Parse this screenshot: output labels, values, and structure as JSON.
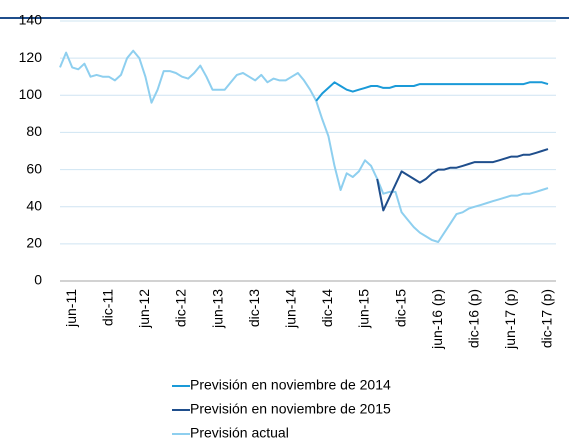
{
  "chart_data": {
    "type": "line",
    "categories": [
      null,
      null,
      "jun-11",
      null,
      null,
      null,
      null,
      null,
      "dic-11",
      null,
      null,
      null,
      null,
      null,
      "jun-12",
      null,
      null,
      null,
      null,
      null,
      "dic-12",
      null,
      null,
      null,
      null,
      null,
      "jun-13",
      null,
      null,
      null,
      null,
      null,
      "dic-13",
      null,
      null,
      null,
      null,
      null,
      "jun-14",
      null,
      null,
      null,
      null,
      null,
      "dic-14",
      null,
      null,
      null,
      null,
      null,
      "jun-15",
      null,
      null,
      null,
      null,
      null,
      "dic-15",
      null,
      null,
      null,
      null,
      null,
      "jun-16 (p)",
      null,
      null,
      null,
      null,
      null,
      "dic-16 (p)",
      null,
      null,
      null,
      null,
      null,
      "jun-17 (p)",
      null,
      null,
      null,
      null,
      null,
      "dic-17 (p)"
    ],
    "series": [
      {
        "name": "Previsión en noviembre de 2014",
        "color": "#1a9ad8",
        "values": [
          null,
          null,
          null,
          null,
          null,
          null,
          null,
          null,
          null,
          null,
          null,
          null,
          null,
          null,
          null,
          null,
          null,
          null,
          null,
          null,
          null,
          null,
          null,
          null,
          null,
          null,
          null,
          null,
          null,
          null,
          null,
          null,
          null,
          null,
          null,
          null,
          null,
          null,
          null,
          null,
          null,
          null,
          97,
          101,
          104,
          107,
          105,
          103,
          102,
          103,
          104,
          105,
          105,
          104,
          104,
          105,
          105,
          105,
          105,
          106,
          106,
          106,
          106,
          106,
          106,
          106,
          106,
          106,
          106,
          106,
          106,
          106,
          106,
          106,
          106,
          106,
          106,
          107,
          107,
          107,
          106
        ]
      },
      {
        "name": "Previsión en noviembre de 2015",
        "color": "#1f4e8c",
        "values": [
          null,
          null,
          null,
          null,
          null,
          null,
          null,
          null,
          null,
          null,
          null,
          null,
          null,
          null,
          null,
          null,
          null,
          null,
          null,
          null,
          null,
          null,
          null,
          null,
          null,
          null,
          null,
          null,
          null,
          null,
          null,
          null,
          null,
          null,
          null,
          null,
          null,
          null,
          null,
          null,
          null,
          null,
          null,
          null,
          null,
          null,
          null,
          null,
          null,
          null,
          null,
          null,
          55,
          38,
          45,
          52,
          59,
          57,
          55,
          53,
          55,
          58,
          60,
          60,
          61,
          61,
          62,
          63,
          64,
          64,
          64,
          64,
          65,
          66,
          67,
          67,
          68,
          68,
          69,
          70,
          71
        ]
      },
      {
        "name": "Previsión actual",
        "color": "#8ecfef",
        "values": [
          115,
          123,
          115,
          114,
          117,
          110,
          111,
          110,
          110,
          108,
          111,
          120,
          124,
          120,
          110,
          96,
          103,
          113,
          113,
          112,
          110,
          109,
          112,
          116,
          110,
          103,
          103,
          103,
          107,
          111,
          112,
          110,
          108,
          111,
          107,
          109,
          108,
          108,
          110,
          112,
          108,
          103,
          97,
          87,
          78,
          62,
          49,
          58,
          56,
          59,
          65,
          62,
          55,
          47,
          48,
          48,
          37,
          33,
          29,
          26,
          24,
          22,
          21,
          26,
          31,
          36,
          37,
          39,
          40,
          41,
          42,
          43,
          44,
          45,
          46,
          46,
          47,
          47,
          48,
          49,
          50
        ]
      }
    ],
    "ylim": [
      0,
      140
    ],
    "yticks": [
      0,
      20,
      40,
      60,
      80,
      100,
      120,
      140
    ],
    "grid": true
  }
}
